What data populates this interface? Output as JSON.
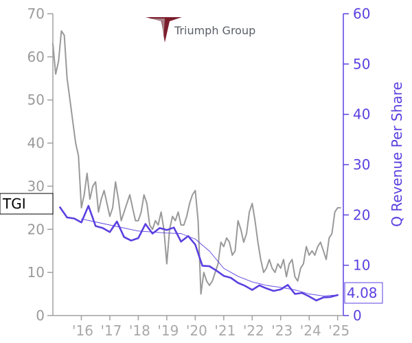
{
  "logo": {
    "company": "Triumph Group",
    "icon": "triumph-arrowhead-logo",
    "icon_color": "#7b1c2b"
  },
  "ticker": {
    "label": "TGI",
    "price_at_label": 25.4
  },
  "last_value": {
    "label": "4.08",
    "value": 4.08
  },
  "colors": {
    "price_line": "#999999",
    "revenue_line": "#5b3fe0",
    "trend_line": "#5b3fe0",
    "left_axis": "#a0a0a0",
    "right_axis": "#5b3fe0"
  },
  "chart_data": {
    "type": "line",
    "title": "",
    "xlabel": "",
    "ylabel_left": "",
    "ylabel_right": "Q Revenue Per Share",
    "x_tick_labels": [
      "'16",
      "'17",
      "'18",
      "'19",
      "'20",
      "'21",
      "'22",
      "'23",
      "'24",
      "'25"
    ],
    "x_tick_values": [
      2016,
      2017,
      2018,
      2019,
      2020,
      2021,
      2022,
      2023,
      2024,
      2025
    ],
    "xlim": [
      2015.0,
      2025.2
    ],
    "y_left": {
      "lim": [
        0,
        70
      ],
      "ticks": [
        0,
        10,
        20,
        30,
        40,
        50,
        60,
        70
      ]
    },
    "y_right": {
      "lim": [
        0,
        60
      ],
      "ticks": [
        0,
        10,
        20,
        30,
        40,
        50,
        60
      ]
    },
    "grid": false,
    "legend": "none",
    "series": [
      {
        "axis": "left",
        "x": [
          2015.0,
          2015.1,
          2015.2,
          2015.3,
          2015.4,
          2015.5,
          2015.6,
          2015.7,
          2015.8,
          2015.9,
          2016.0,
          2016.1,
          2016.2,
          2016.3,
          2016.4,
          2016.5,
          2016.6,
          2016.7,
          2016.8,
          2016.9,
          2017.0,
          2017.1,
          2017.2,
          2017.3,
          2017.4,
          2017.5,
          2017.6,
          2017.7,
          2017.8,
          2017.9,
          2018.0,
          2018.1,
          2018.2,
          2018.3,
          2018.4,
          2018.5,
          2018.6,
          2018.7,
          2018.8,
          2018.9,
          2019.0,
          2019.1,
          2019.2,
          2019.3,
          2019.4,
          2019.5,
          2019.6,
          2019.7,
          2019.8,
          2019.9,
          2020.0,
          2020.1,
          2020.2,
          2020.3,
          2020.4,
          2020.5,
          2020.6,
          2020.7,
          2020.8,
          2020.9,
          2021.0,
          2021.1,
          2021.2,
          2021.3,
          2021.4,
          2021.5,
          2021.6,
          2021.7,
          2021.8,
          2021.9,
          2022.0,
          2022.1,
          2022.2,
          2022.3,
          2022.4,
          2022.5,
          2022.6,
          2022.7,
          2022.8,
          2022.9,
          2023.0,
          2023.1,
          2023.2,
          2023.3,
          2023.4,
          2023.5,
          2023.6,
          2023.7,
          2023.8,
          2023.9,
          2024.0,
          2024.1,
          2024.2,
          2024.3,
          2024.4,
          2024.5,
          2024.6,
          2024.7,
          2024.8,
          2024.9,
          2025.0,
          2025.1
        ],
        "values": [
          63,
          56,
          59,
          66,
          65,
          55,
          50,
          45,
          40,
          37,
          25,
          28,
          33,
          27,
          30,
          31,
          24,
          27,
          29,
          26,
          23,
          25,
          31,
          27,
          22,
          24,
          26,
          28,
          25,
          22,
          22,
          24,
          28,
          26,
          21,
          20,
          22,
          21,
          24,
          20,
          12,
          20,
          23,
          22,
          24,
          21,
          21,
          23,
          26,
          28,
          29,
          22,
          5,
          10,
          8,
          7,
          8,
          10,
          12,
          17,
          16,
          18,
          17,
          14,
          15,
          22,
          20,
          17,
          19,
          24,
          26,
          22,
          17,
          13,
          10,
          11,
          13,
          11,
          10,
          12,
          11,
          13,
          9,
          12,
          13,
          9,
          8,
          11,
          12,
          16,
          14,
          15,
          14,
          16,
          17,
          15,
          13,
          18,
          19,
          24,
          25,
          25
        ]
      },
      {
        "name": "Q Revenue Per Share",
        "axis": "right",
        "x": [
          2015.25,
          2015.5,
          2015.75,
          2016.0,
          2016.25,
          2016.5,
          2016.75,
          2017.0,
          2017.25,
          2017.5,
          2017.75,
          2018.0,
          2018.25,
          2018.5,
          2018.75,
          2019.0,
          2019.25,
          2019.5,
          2019.75,
          2020.0,
          2020.25,
          2020.5,
          2020.75,
          2021.0,
          2021.25,
          2021.5,
          2021.75,
          2022.0,
          2022.25,
          2022.5,
          2022.75,
          2023.0,
          2023.25,
          2023.5,
          2023.75,
          2024.0,
          2024.25,
          2024.5,
          2024.75,
          2025.0
        ],
        "values": [
          21.5,
          19.5,
          19.3,
          18.5,
          21.8,
          17.8,
          17.4,
          16.6,
          18.7,
          15.6,
          14.9,
          15.4,
          18.2,
          16.3,
          17.4,
          17.0,
          17.5,
          14.7,
          15.8,
          14.1,
          9.9,
          9.8,
          8.9,
          7.9,
          7.5,
          6.5,
          5.9,
          5.1,
          6.0,
          5.4,
          4.9,
          5.2,
          6.1,
          4.3,
          4.5,
          3.8,
          3.0,
          3.6,
          3.7,
          4.08
        ]
      },
      {
        "name": "trend",
        "axis": "right",
        "x": [
          2016.0,
          2017.0,
          2018.0,
          2019.0,
          2019.5,
          2020.0,
          2020.5,
          2021.0,
          2021.5,
          2022.0,
          2022.5,
          2023.0,
          2023.5,
          2024.0,
          2024.5,
          2025.0
        ],
        "values": [
          19.2,
          18.0,
          16.8,
          16.4,
          16.3,
          15.2,
          12.8,
          9.4,
          7.8,
          6.7,
          6.0,
          5.6,
          5.1,
          4.3,
          3.9,
          4.1
        ]
      }
    ]
  }
}
